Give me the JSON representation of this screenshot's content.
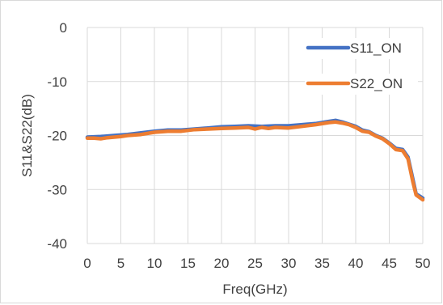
{
  "chart_data": {
    "type": "line",
    "xlabel": "Freq(GHz)",
    "ylabel": "S11&S22(dB)",
    "xlim": [
      0,
      50
    ],
    "ylim": [
      -40,
      0
    ],
    "x_ticks": [
      0,
      5,
      10,
      15,
      20,
      25,
      30,
      35,
      40,
      45,
      50
    ],
    "y_ticks": [
      0,
      -10,
      -20,
      -30,
      -40
    ],
    "grid": true,
    "legend_position": "top-right",
    "series": [
      {
        "name": "S11_ON",
        "color": "#4472C4",
        "points": [
          [
            0,
            -20.3
          ],
          [
            2,
            -20.2
          ],
          [
            4,
            -20.0
          ],
          [
            6,
            -19.8
          ],
          [
            8,
            -19.5
          ],
          [
            10,
            -19.2
          ],
          [
            12,
            -19.0
          ],
          [
            14,
            -19.0
          ],
          [
            16,
            -18.8
          ],
          [
            18,
            -18.6
          ],
          [
            20,
            -18.4
          ],
          [
            22,
            -18.3
          ],
          [
            24,
            -18.2
          ],
          [
            26,
            -18.3
          ],
          [
            28,
            -18.2
          ],
          [
            30,
            -18.2
          ],
          [
            32,
            -18.0
          ],
          [
            34,
            -17.8
          ],
          [
            36,
            -17.4
          ],
          [
            37,
            -17.2
          ],
          [
            38,
            -17.5
          ],
          [
            39,
            -17.9
          ],
          [
            40,
            -18.3
          ],
          [
            41,
            -19.0
          ],
          [
            42,
            -19.3
          ],
          [
            43,
            -20.0
          ],
          [
            44,
            -20.5
          ],
          [
            45,
            -21.4
          ],
          [
            46,
            -22.4
          ],
          [
            47,
            -22.6
          ],
          [
            47.8,
            -24.0
          ],
          [
            48.5,
            -28.0
          ],
          [
            49,
            -30.8
          ],
          [
            50,
            -31.6
          ]
        ]
      },
      {
        "name": "S22_ON",
        "color": "#ED7D31",
        "points": [
          [
            0,
            -20.5
          ],
          [
            1,
            -20.5
          ],
          [
            2,
            -20.6
          ],
          [
            3,
            -20.4
          ],
          [
            4,
            -20.3
          ],
          [
            5,
            -20.2
          ],
          [
            6,
            -20.0
          ],
          [
            8,
            -19.8
          ],
          [
            10,
            -19.4
          ],
          [
            12,
            -19.2
          ],
          [
            14,
            -19.2
          ],
          [
            16,
            -18.9
          ],
          [
            18,
            -18.8
          ],
          [
            20,
            -18.7
          ],
          [
            22,
            -18.6
          ],
          [
            24,
            -18.5
          ],
          [
            25,
            -18.8
          ],
          [
            26,
            -18.5
          ],
          [
            27,
            -18.7
          ],
          [
            28,
            -18.5
          ],
          [
            30,
            -18.6
          ],
          [
            32,
            -18.3
          ],
          [
            34,
            -18.0
          ],
          [
            36,
            -17.6
          ],
          [
            37,
            -17.5
          ],
          [
            38,
            -17.7
          ],
          [
            39,
            -18.0
          ],
          [
            40,
            -18.5
          ],
          [
            41,
            -19.2
          ],
          [
            42,
            -19.4
          ],
          [
            43,
            -20.1
          ],
          [
            44,
            -20.6
          ],
          [
            45,
            -21.5
          ],
          [
            46,
            -22.6
          ],
          [
            47,
            -22.8
          ],
          [
            47.8,
            -24.3
          ],
          [
            48.5,
            -28.5
          ],
          [
            49,
            -31.0
          ],
          [
            50,
            -31.9
          ]
        ]
      }
    ]
  }
}
